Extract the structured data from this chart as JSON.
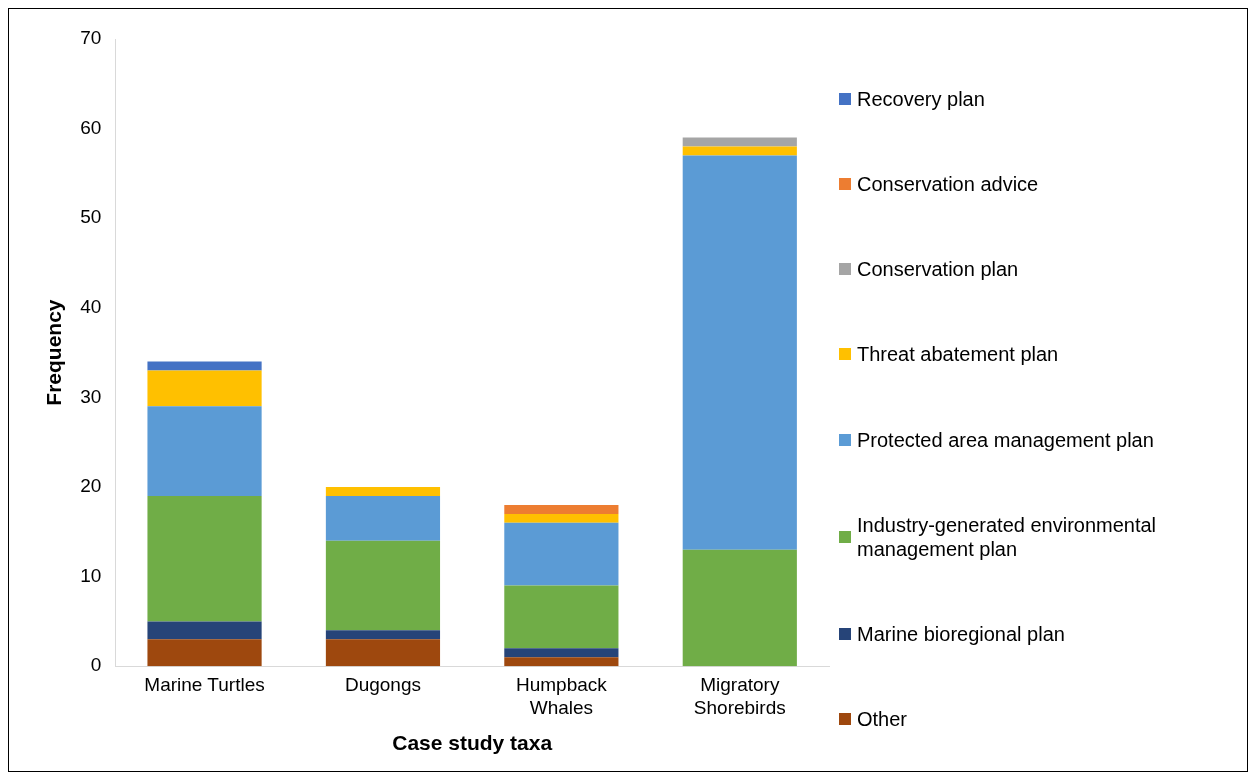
{
  "chart_data": {
    "type": "bar",
    "stacked": true,
    "xlabel": "Case study taxa",
    "ylabel": "Frequency",
    "categories": [
      "Marine Turtles",
      "Dugongs",
      "Humpback Whales",
      "Migratory Shorebirds"
    ],
    "ylim": [
      0,
      70
    ],
    "yticks": [
      0,
      10,
      20,
      30,
      40,
      50,
      60,
      70
    ],
    "grid": false,
    "legend": "right",
    "series": [
      {
        "name": "Other",
        "color": "#9e480e",
        "values": [
          3,
          3,
          1,
          0
        ]
      },
      {
        "name": "Marine bioregional plan",
        "color": "#264478",
        "values": [
          2,
          1,
          1,
          0
        ]
      },
      {
        "name": "Industry-generated environmental management plan",
        "color": "#70ad47",
        "values": [
          14,
          10,
          7,
          13
        ]
      },
      {
        "name": "Protected area management plan",
        "color": "#5b9bd5",
        "values": [
          10,
          5,
          7,
          44
        ]
      },
      {
        "name": "Threat abatement plan",
        "color": "#ffc000",
        "values": [
          4,
          1,
          1,
          1
        ]
      },
      {
        "name": "Conservation plan",
        "color": "#a5a5a5",
        "values": [
          0,
          0,
          0,
          1
        ]
      },
      {
        "name": "Conservation advice",
        "color": "#ed7d31",
        "values": [
          0,
          0,
          1,
          0
        ]
      },
      {
        "name": "Recovery plan",
        "color": "#4472c4",
        "values": [
          1,
          0,
          0,
          0
        ]
      }
    ]
  }
}
